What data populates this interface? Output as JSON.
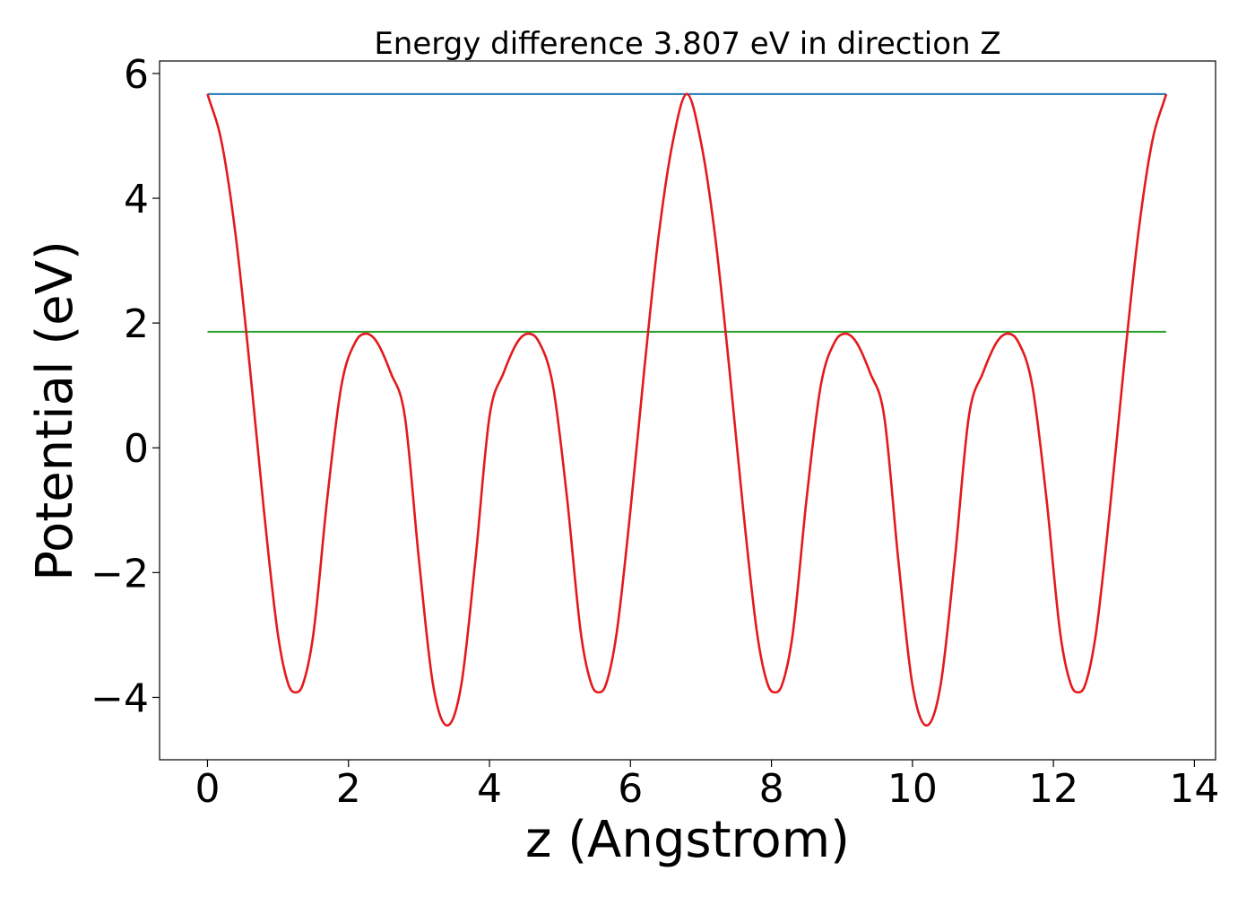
{
  "chart_data": {
    "type": "line",
    "title": "Energy difference 3.807 eV in direction Z",
    "xlabel": "z (Angstrom)",
    "ylabel": "Potential (eV)",
    "xlim": [
      -0.68,
      14.3
    ],
    "ylim": [
      -5.0,
      6.2
    ],
    "xticks": [
      0,
      2,
      4,
      6,
      8,
      10,
      12,
      14
    ],
    "xtick_labels": [
      "0",
      "2",
      "4",
      "6",
      "8",
      "10",
      "12",
      "14"
    ],
    "yticks": [
      -4,
      -2,
      0,
      2,
      4,
      6
    ],
    "ytick_labels": [
      "−4",
      "−2",
      "0",
      "2",
      "4",
      "6"
    ],
    "grid": false,
    "legend": "none",
    "series": [
      {
        "color": "#e31a1c",
        "x": [
          0.0,
          0.2,
          0.4,
          0.6,
          0.8,
          1.0,
          1.15,
          1.25,
          1.35,
          1.5,
          1.7,
          1.9,
          2.1,
          2.25,
          2.4,
          2.6,
          2.8,
          3.0,
          3.2,
          3.4,
          3.6,
          3.8,
          4.0,
          4.2,
          4.4,
          4.55,
          4.7,
          4.9,
          5.1,
          5.3,
          5.45,
          5.55,
          5.65,
          5.8,
          6.0,
          6.2,
          6.4,
          6.6,
          6.8,
          7.0,
          7.2,
          7.4,
          7.6,
          7.8,
          7.95,
          8.05,
          8.15,
          8.3,
          8.5,
          8.7,
          8.9,
          9.05,
          9.2,
          9.4,
          9.6,
          9.8,
          10.0,
          10.2,
          10.4,
          10.6,
          10.8,
          11.0,
          11.2,
          11.35,
          11.5,
          11.7,
          11.9,
          12.1,
          12.25,
          12.35,
          12.45,
          12.6,
          12.8,
          13.0,
          13.2,
          13.4,
          13.6
        ],
        "values": [
          5.67,
          4.9,
          3.4,
          1.3,
          -1.0,
          -3.0,
          -3.8,
          -3.92,
          -3.8,
          -3.0,
          -0.8,
          1.0,
          1.7,
          1.83,
          1.7,
          1.2,
          0.5,
          -1.8,
          -3.8,
          -4.45,
          -3.8,
          -1.8,
          0.5,
          1.2,
          1.7,
          1.83,
          1.7,
          1.0,
          -0.8,
          -3.0,
          -3.8,
          -3.92,
          -3.8,
          -3.0,
          -1.0,
          1.3,
          3.4,
          4.9,
          5.67,
          4.9,
          3.4,
          1.3,
          -1.0,
          -3.0,
          -3.8,
          -3.92,
          -3.8,
          -3.0,
          -0.8,
          1.0,
          1.7,
          1.83,
          1.7,
          1.2,
          0.5,
          -1.8,
          -3.8,
          -4.45,
          -3.8,
          -1.8,
          0.5,
          1.2,
          1.7,
          1.83,
          1.7,
          1.0,
          -0.8,
          -3.0,
          -3.8,
          -3.92,
          -3.8,
          -3.0,
          -1.0,
          1.3,
          3.4,
          4.9,
          5.67
        ]
      },
      {
        "color": "#1f77b4",
        "x": [
          0.0,
          13.6
        ],
        "values": [
          5.67,
          5.67
        ]
      },
      {
        "color": "#2ca02c",
        "x": [
          0.0,
          13.6
        ],
        "values": [
          1.86,
          1.86
        ]
      }
    ]
  }
}
